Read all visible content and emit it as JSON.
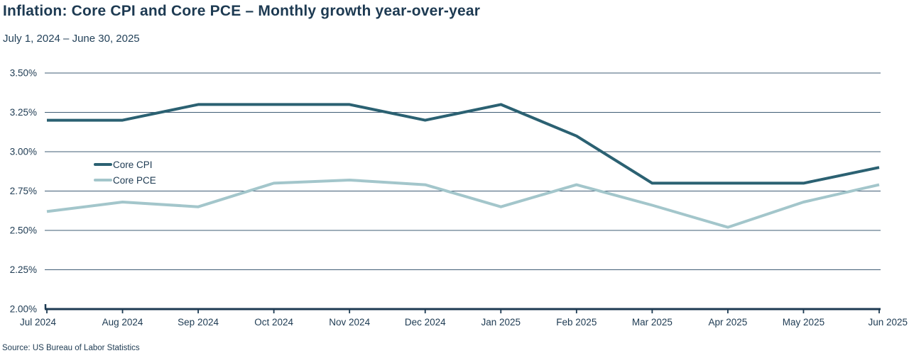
{
  "header": {
    "title": "Inflation: Core CPI and Core PCE – Monthly growth year-over-year",
    "subtitle": "July 1, 2024 – June 30, 2025"
  },
  "footer": {
    "source": "Source: US Bureau of Labor Statistics"
  },
  "colors": {
    "title_text": "#1d3a52",
    "axis_text": "#1d3a52",
    "gridline": "#3f5c75",
    "axis_line": "#1d3a52",
    "core_cpi": "#2b6172",
    "core_pce": "#a3c6cb",
    "background": "#ffffff"
  },
  "chart_data": {
    "type": "line",
    "title": "Inflation: Core CPI and Core PCE – Monthly growth year-over-year",
    "subtitle": "July 1, 2024 – June 30, 2025",
    "x": [
      "Jul 2024",
      "Aug 2024",
      "Sep 2024",
      "Oct 2024",
      "Nov 2024",
      "Dec 2024",
      "Jan 2025",
      "Feb 2025",
      "Mar 2025",
      "Apr 2025",
      "May 2025",
      "Jun 2025"
    ],
    "series": [
      {
        "name": "Core CPI",
        "color_key": "core_cpi",
        "values": [
          3.2,
          3.2,
          3.3,
          3.3,
          3.3,
          3.2,
          3.3,
          3.1,
          2.8,
          2.8,
          2.8,
          2.9
        ]
      },
      {
        "name": "Core PCE",
        "color_key": "core_pce",
        "values": [
          2.62,
          2.68,
          2.65,
          2.8,
          2.82,
          2.79,
          2.65,
          2.79,
          2.66,
          2.52,
          2.68,
          2.79
        ]
      }
    ],
    "xlabel": "",
    "ylabel": "",
    "ylim": [
      2.0,
      3.5
    ],
    "ytick_step": 0.25,
    "ytick_labels": [
      "3.50%",
      "3.25%",
      "3.00%",
      "2.75%",
      "2.50%",
      "2.25%",
      "2.00%"
    ],
    "grid": "horizontal",
    "legend_position": "inside-left"
  }
}
